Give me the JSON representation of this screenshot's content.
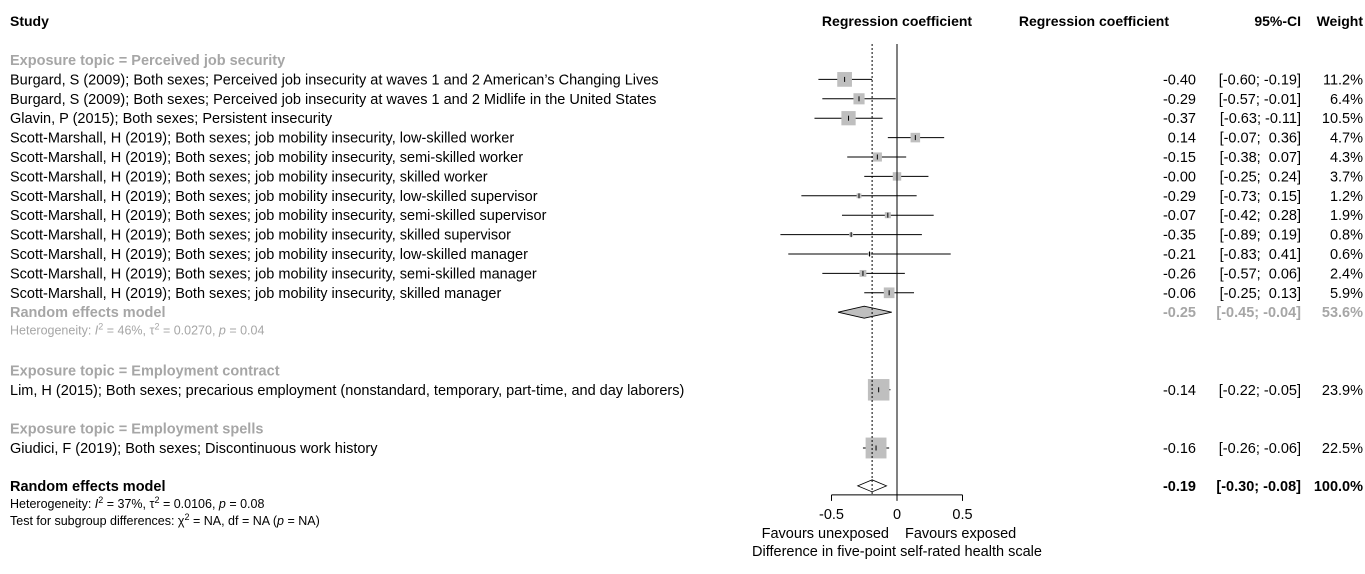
{
  "colors": {
    "text": "#000000",
    "subgroup": "#a6a6a6",
    "box": "#bfbfbf",
    "line": "#000000"
  },
  "header": {
    "study": "Study",
    "plot_col": "Regression coefficient",
    "coef_col": "Regression coefficient",
    "ci_col": "95%-CI",
    "weight_col": "Weight"
  },
  "chart_data": {
    "type": "forest",
    "xlim": [
      -0.5,
      0.5
    ],
    "xticks": [
      "-0.5",
      "0",
      "0.5"
    ],
    "reference_line": 0,
    "pooled_line": -0.19,
    "axis_label_left": "Favours unexposed",
    "axis_label_right": "Favours exposed",
    "xlabel": "Difference in five-point self-rated health scale",
    "groups": [
      {
        "title": "Exposure topic = Perceived job security",
        "studies": [
          {
            "label": "Burgard, S (2009); Both sexes; Perceived job insecurity at waves 1 and 2 American’s Changing Lives",
            "est": -0.4,
            "lo": -0.6,
            "hi": -0.19,
            "est_text": "-0.40",
            "ci_text": "[-0.60; -0.19]",
            "weight_text": "11.2%",
            "weight": 11.2
          },
          {
            "label": "Burgard, S (2009); Both sexes; Perceived job insecurity at waves 1 and 2 Midlife in the United States",
            "est": -0.29,
            "lo": -0.57,
            "hi": -0.01,
            "est_text": "-0.29",
            "ci_text": "[-0.57; -0.01]",
            "weight_text": "6.4%",
            "weight": 6.4
          },
          {
            "label": "Glavin, P (2015); Both sexes; Persistent insecurity",
            "est": -0.37,
            "lo": -0.63,
            "hi": -0.11,
            "est_text": "-0.37",
            "ci_text": "[-0.63; -0.11]",
            "weight_text": "10.5%",
            "weight": 10.5
          },
          {
            "label": "Scott-Marshall, H (2019); Both sexes; job mobility insecurity, low-skilled worker",
            "est": 0.14,
            "lo": -0.07,
            "hi": 0.36,
            "est_text": "0.14",
            "ci_text": "[-0.07;  0.36]",
            "weight_text": "4.7%",
            "weight": 4.7
          },
          {
            "label": "Scott-Marshall, H (2019); Both sexes; job mobility insecurity, semi-skilled worker",
            "est": -0.15,
            "lo": -0.38,
            "hi": 0.07,
            "est_text": "-0.15",
            "ci_text": "[-0.38;  0.07]",
            "weight_text": "4.3%",
            "weight": 4.3
          },
          {
            "label": "Scott-Marshall, H (2019); Both sexes; job mobility insecurity, skilled worker",
            "est": 0.0,
            "lo": -0.25,
            "hi": 0.24,
            "est_text": "-0.00",
            "ci_text": "[-0.25;  0.24]",
            "weight_text": "3.7%",
            "weight": 3.7
          },
          {
            "label": "Scott-Marshall, H (2019); Both sexes; job mobility insecurity, low-skilled supervisor",
            "est": -0.29,
            "lo": -0.73,
            "hi": 0.15,
            "est_text": "-0.29",
            "ci_text": "[-0.73;  0.15]",
            "weight_text": "1.2%",
            "weight": 1.2
          },
          {
            "label": "Scott-Marshall, H (2019); Both sexes; job mobility insecurity, semi-skilled supervisor",
            "est": -0.07,
            "lo": -0.42,
            "hi": 0.28,
            "est_text": "-0.07",
            "ci_text": "[-0.42;  0.28]",
            "weight_text": "1.9%",
            "weight": 1.9
          },
          {
            "label": "Scott-Marshall, H (2019); Both sexes; job mobility insecurity, skilled supervisor",
            "est": -0.35,
            "lo": -0.89,
            "hi": 0.19,
            "est_text": "-0.35",
            "ci_text": "[-0.89;  0.19]",
            "weight_text": "0.8%",
            "weight": 0.8
          },
          {
            "label": "Scott-Marshall, H (2019); Both sexes; job mobility insecurity, low-skilled manager",
            "est": -0.21,
            "lo": -0.83,
            "hi": 0.41,
            "est_text": "-0.21",
            "ci_text": "[-0.83;  0.41]",
            "weight_text": "0.6%",
            "weight": 0.6
          },
          {
            "label": "Scott-Marshall, H (2019); Both sexes; job mobility insecurity, semi-skilled manager",
            "est": -0.26,
            "lo": -0.57,
            "hi": 0.06,
            "est_text": "-0.26",
            "ci_text": "[-0.57;  0.06]",
            "weight_text": "2.4%",
            "weight": 2.4
          },
          {
            "label": "Scott-Marshall, H (2019); Both sexes; job mobility insecurity, skilled manager",
            "est": -0.06,
            "lo": -0.25,
            "hi": 0.13,
            "est_text": "-0.06",
            "ci_text": "[-0.25;  0.13]",
            "weight_text": "5.9%",
            "weight": 5.9
          }
        ],
        "summary": {
          "label": "Random effects model",
          "est": -0.25,
          "lo": -0.45,
          "hi": -0.04,
          "est_text": "-0.25",
          "ci_text": "[-0.45; -0.04]",
          "weight_text": "53.6%"
        },
        "heterogeneity": {
          "prefix": "Heterogeneity: ",
          "i2_sym": "I",
          "i2_sup": "2",
          "i2_val": " = 46%, ",
          "tau_sym": "τ",
          "tau_sup": "2",
          "tau_val": " = 0.0270, ",
          "p_sym": "p",
          "p_val": " = 0.04"
        }
      },
      {
        "title": "Exposure topic = Employment contract",
        "studies": [
          {
            "label": "Lim, H (2015); Both sexes; precarious employment (nonstandard, temporary, part-time, and day laborers)",
            "est": -0.14,
            "lo": -0.22,
            "hi": -0.05,
            "est_text": "-0.14",
            "ci_text": "[-0.22; -0.05]",
            "weight_text": "23.9%",
            "weight": 23.9
          }
        ]
      },
      {
        "title": "Exposure topic = Employment spells",
        "studies": [
          {
            "label": "Giudici, F (2019); Both sexes; Discontinuous work history",
            "est": -0.16,
            "lo": -0.26,
            "hi": -0.06,
            "est_text": "-0.16",
            "ci_text": "[-0.26; -0.06]",
            "weight_text": "22.5%",
            "weight": 22.5
          }
        ]
      }
    ],
    "overall": {
      "label": "Random effects model",
      "est": -0.19,
      "lo": -0.3,
      "hi": -0.08,
      "est_text": "-0.19",
      "ci_text": "[-0.30; -0.08]",
      "weight_text": "100.0%",
      "heterogeneity": {
        "prefix": "Heterogeneity: ",
        "i2_sym": "I",
        "i2_sup": "2",
        "i2_val": " = 37%, ",
        "tau_sym": "τ",
        "tau_sup": "2",
        "tau_val": " = 0.0106, ",
        "p_sym": "p",
        "p_val": " = 0.08"
      },
      "subgroup_test": {
        "prefix": "Test for subgroup differences: ",
        "chi_sym": "χ",
        "chi_sup": "2",
        "chi_val": " = NA, df = NA (",
        "p_sym": "p",
        "p_val": " = NA)"
      }
    }
  }
}
